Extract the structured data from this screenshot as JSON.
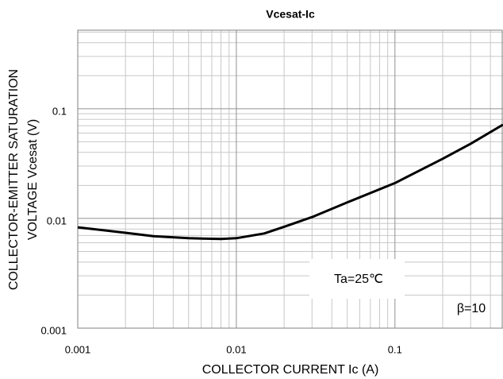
{
  "chart_data": {
    "type": "line",
    "title": "Vcesat-Ic",
    "x_label": "COLLECTOR CURRENT  Ic (A)",
    "y_label": [
      "COLLECTOR-EMITTER SATURATION",
      "VOLTAGE   Vcesat (V)"
    ],
    "annotations": [
      "Ta=25℃",
      "β=10"
    ],
    "x": [
      0.001,
      0.002,
      0.003,
      0.005,
      0.008,
      0.01,
      0.015,
      0.02,
      0.03,
      0.05,
      0.1,
      0.2,
      0.3,
      0.48
    ],
    "series": [
      {
        "name": "Vcesat",
        "color": "#000000",
        "values": [
          0.0083,
          0.0074,
          0.0069,
          0.0066,
          0.0065,
          0.0066,
          0.0073,
          0.0084,
          0.0103,
          0.014,
          0.021,
          0.035,
          0.048,
          0.0716
        ]
      }
    ],
    "xlim": [
      0.001,
      0.48
    ],
    "ylim": [
      0.001,
      0.52
    ],
    "xticks": [
      0.001,
      0.01,
      0.1
    ],
    "yticks": [
      0.001,
      0.01,
      0.1
    ],
    "xscale": "log",
    "yscale": "log",
    "grid": true,
    "minor_grid": true
  }
}
